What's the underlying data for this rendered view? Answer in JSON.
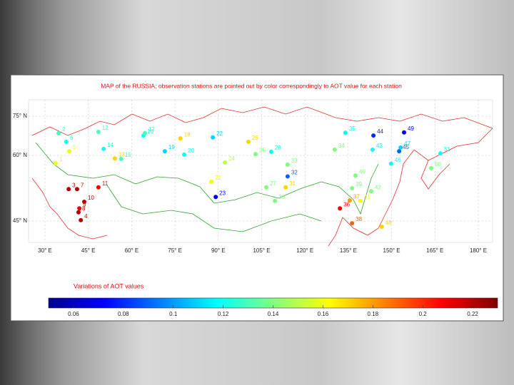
{
  "map": {
    "title": "MAP of the RUSSIA; observation stations are pointed out by color correspondingly to AOT value for each station",
    "lon_ticks": [
      {
        "value": 30,
        "label": "30° E"
      },
      {
        "value": 45,
        "label": "45° E"
      },
      {
        "value": 60,
        "label": "60° E"
      },
      {
        "value": 75,
        "label": "75° E"
      },
      {
        "value": 90,
        "label": "90° E"
      },
      {
        "value": 105,
        "label": "105° E"
      },
      {
        "value": 120,
        "label": "120° E"
      },
      {
        "value": 135,
        "label": "135° E"
      },
      {
        "value": 150,
        "label": "150° E"
      },
      {
        "value": 165,
        "label": "165° E"
      },
      {
        "value": 180,
        "label": "180° E"
      }
    ],
    "lat_ticks": [
      {
        "value": 75,
        "label": "75° N"
      },
      {
        "value": 60,
        "label": "60° N"
      },
      {
        "value": 45,
        "label": "45° N"
      }
    ],
    "stations": [
      {
        "name": "1",
        "lon": 33.7,
        "lat": 58.2,
        "aot": 0.16
      },
      {
        "name": "2",
        "lon": 34.7,
        "lat": 68.5,
        "aot": 0.13
      },
      {
        "name": "3",
        "lon": 38.2,
        "lat": 52.3,
        "aot": 0.22
      },
      {
        "name": "4",
        "lon": 42.4,
        "lat": 45.2,
        "aot": 0.22
      },
      {
        "name": "5",
        "lon": 38.4,
        "lat": 61.6,
        "aot": 0.16
      },
      {
        "name": "6",
        "lon": 37.4,
        "lat": 65.2,
        "aot": 0.12
      },
      {
        "name": "7",
        "lon": 41.1,
        "lat": 52.3,
        "aot": 0.22
      },
      {
        "name": "8",
        "lon": 41.6,
        "lat": 47.0,
        "aot": 0.22
      },
      {
        "name": "9",
        "lon": 41.9,
        "lat": 47.9,
        "aot": 0.21
      },
      {
        "name": "10",
        "lon": 43.6,
        "lat": 49.4,
        "aot": 0.22
      },
      {
        "name": "11",
        "lon": 48.5,
        "lat": 52.7,
        "aot": 0.21
      },
      {
        "name": "12",
        "lon": 48.5,
        "lat": 69.0,
        "aot": 0.13
      },
      {
        "name": "13",
        "lon": 54.2,
        "lat": 59.3,
        "aot": 0.17
      },
      {
        "name": "14",
        "lon": 50.3,
        "lat": 62.5,
        "aot": 0.12
      },
      {
        "name": "15",
        "lon": 56.4,
        "lat": 59.2,
        "aot": 0.13
      },
      {
        "name": "16",
        "lon": 64.1,
        "lat": 67.6,
        "aot": 0.12
      },
      {
        "name": "17",
        "lon": 64.6,
        "lat": 68.5,
        "aot": 0.13
      },
      {
        "name": "18",
        "lon": 76.9,
        "lat": 66.5,
        "aot": 0.17
      },
      {
        "name": "19",
        "lon": 71.5,
        "lat": 61.6,
        "aot": 0.11
      },
      {
        "name": "20",
        "lon": 78.2,
        "lat": 60.3,
        "aot": 0.12
      },
      {
        "name": "21",
        "lon": 87.6,
        "lat": 54.0,
        "aot": 0.16
      },
      {
        "name": "22",
        "lon": 88.1,
        "lat": 66.9,
        "aot": 0.11
      },
      {
        "name": "23",
        "lon": 89.1,
        "lat": 50.5,
        "aot": 0.07
      },
      {
        "name": "24",
        "lon": 92.3,
        "lat": 58.4,
        "aot": 0.15
      },
      {
        "name": "25",
        "lon": 102.9,
        "lat": 60.5,
        "aot": 0.14
      },
      {
        "name": "26",
        "lon": 100.4,
        "lat": 65.2,
        "aot": 0.17
      },
      {
        "name": "27",
        "lon": 106.6,
        "lat": 52.7,
        "aot": 0.14
      },
      {
        "name": "28",
        "lon": 108.3,
        "lat": 61.4,
        "aot": 0.12
      },
      {
        "name": "30",
        "lon": 109.6,
        "lat": 49.6,
        "aot": 0.14
      },
      {
        "name": "31",
        "lon": 113.3,
        "lat": 52.7,
        "aot": 0.17
      },
      {
        "name": "32",
        "lon": 114.0,
        "lat": 55.2,
        "aot": 0.09
      },
      {
        "name": "33",
        "lon": 114.0,
        "lat": 57.9,
        "aot": 0.14
      },
      {
        "name": "34",
        "lon": 130.3,
        "lat": 62.2,
        "aot": 0.14
      },
      {
        "name": "35",
        "lon": 134.0,
        "lat": 68.7,
        "aot": 0.12
      },
      {
        "name": "36",
        "lon": 132.1,
        "lat": 47.9,
        "aot": 0.21
      },
      {
        "name": "37",
        "lon": 135.5,
        "lat": 49.7,
        "aot": 0.18
      },
      {
        "name": "38",
        "lon": 136.3,
        "lat": 44.5,
        "aot": 0.19
      },
      {
        "name": "39",
        "lon": 136.3,
        "lat": 52.5,
        "aot": 0.14
      },
      {
        "name": "40",
        "lon": 137.5,
        "lat": 55.4,
        "aot": 0.14
      },
      {
        "name": "41",
        "lon": 139.2,
        "lat": 49.6,
        "aot": 0.16
      },
      {
        "name": "42",
        "lon": 142.9,
        "lat": 51.8,
        "aot": 0.14
      },
      {
        "name": "43",
        "lon": 143.4,
        "lat": 62.2,
        "aot": 0.12
      },
      {
        "name": "44",
        "lon": 143.7,
        "lat": 67.6,
        "aot": 0.08
      },
      {
        "name": "45",
        "lon": 152.6,
        "lat": 61.6,
        "aot": 0.09
      },
      {
        "name": "46",
        "lon": 149.8,
        "lat": 58.1,
        "aot": 0.12
      },
      {
        "name": "47",
        "lon": 153.1,
        "lat": 63.0,
        "aot": 0.11
      },
      {
        "name": "48",
        "lon": 146.6,
        "lat": 43.7,
        "aot": 0.17
      },
      {
        "name": "49",
        "lon": 154.3,
        "lat": 68.8,
        "aot": 0.07
      },
      {
        "name": "50",
        "lon": 163.7,
        "lat": 57.1,
        "aot": 0.14
      },
      {
        "name": "51",
        "lon": 166.9,
        "lat": 60.8,
        "aot": 0.12
      }
    ],
    "colorbar": {
      "title": "Variations of AOT values",
      "clim": [
        0.05,
        0.23
      ],
      "ticks": [
        0.06,
        0.08,
        0.1,
        0.12,
        0.14,
        0.16,
        0.18,
        0.2,
        0.22
      ]
    }
  }
}
